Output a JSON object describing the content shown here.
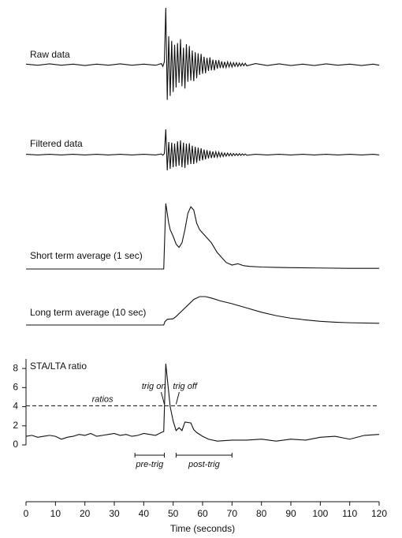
{
  "chart_data": [
    {
      "type": "line",
      "title": "Raw data",
      "xlim": [
        0,
        120
      ],
      "ylim": [
        -10,
        10
      ],
      "x": [
        0,
        4,
        8,
        12,
        16,
        20,
        24,
        28,
        32,
        36,
        40,
        44,
        46,
        46.5,
        47,
        47.5,
        48,
        48.5,
        49,
        49.5,
        50,
        50.5,
        51,
        51.5,
        52,
        52.5,
        53,
        53.5,
        54,
        54.5,
        55,
        55.5,
        56,
        56.5,
        57,
        57.5,
        58,
        58.5,
        59,
        59.5,
        60,
        60.5,
        61,
        61.5,
        62,
        62.5,
        63,
        63.5,
        64,
        64.5,
        65,
        65.5,
        66,
        66.5,
        67,
        67.5,
        68,
        68.5,
        69,
        69.5,
        70,
        70.5,
        71,
        71.5,
        72,
        72.5,
        73,
        73.5,
        74,
        74.5,
        75,
        78,
        82,
        86,
        90,
        94,
        98,
        102,
        106,
        110,
        114,
        118,
        120
      ],
      "values": [
        0.1,
        -0.1,
        0.15,
        -0.1,
        0.1,
        -0.15,
        0.1,
        -0.1,
        0.15,
        -0.1,
        0.1,
        -0.1,
        0.2,
        -0.3,
        0.5,
        10,
        -6.2,
        5,
        -5.5,
        4.2,
        -4.8,
        3.5,
        -4,
        3.8,
        -3.2,
        4.5,
        -3.8,
        3,
        -4.2,
        3.6,
        -3,
        3.3,
        -2.8,
        2.5,
        -2.9,
        2.2,
        -2.4,
        2,
        -1.8,
        1.9,
        -1.6,
        1.4,
        -1.5,
        1.2,
        -1.1,
        1.3,
        -1,
        0.9,
        -1,
        0.8,
        -0.7,
        0.8,
        -0.6,
        0.6,
        -0.6,
        0.5,
        -0.5,
        0.5,
        -0.4,
        0.4,
        -0.4,
        0.35,
        -0.3,
        0.35,
        -0.3,
        0.3,
        -0.25,
        0.25,
        -0.2,
        0.25,
        -0.2,
        0.2,
        -0.15,
        0.15,
        -0.15,
        0.1,
        -0.15,
        0.15,
        -0.1,
        0.1,
        -0.15,
        0.1,
        -0.1
      ]
    },
    {
      "type": "line",
      "title": "Filtered data",
      "xlim": [
        0,
        120
      ],
      "ylim": [
        -10,
        10
      ],
      "x": [
        0,
        4,
        8,
        12,
        16,
        20,
        24,
        28,
        32,
        36,
        40,
        44,
        46,
        46.5,
        47,
        47.5,
        48,
        48.5,
        49,
        49.5,
        50,
        50.5,
        51,
        51.5,
        52,
        52.5,
        53,
        53.5,
        54,
        54.5,
        55,
        55.5,
        56,
        56.5,
        57,
        57.5,
        58,
        58.5,
        59,
        59.5,
        60,
        60.5,
        61,
        61.5,
        62,
        62.5,
        63,
        63.5,
        64,
        64.5,
        65,
        65.5,
        66,
        66.5,
        67,
        67.5,
        68,
        68.5,
        69,
        69.5,
        70,
        70.5,
        71,
        71.5,
        72,
        72.5,
        73,
        73.5,
        74,
        74.5,
        75,
        78,
        82,
        86,
        90,
        94,
        98,
        102,
        106,
        110,
        114,
        118,
        120
      ],
      "values": [
        0.1,
        -0.1,
        0.1,
        -0.1,
        0.1,
        -0.1,
        0.1,
        -0.1,
        0.1,
        -0.1,
        0.1,
        -0.1,
        0.2,
        -0.2,
        0.3,
        8,
        -5,
        4,
        -4.5,
        3.8,
        -4,
        3.5,
        -3.8,
        4.2,
        -3.5,
        4.5,
        -4,
        3.8,
        -4.2,
        3.5,
        -3.2,
        3.6,
        -3,
        2.8,
        -3,
        2.5,
        -2.6,
        2.2,
        -2,
        2,
        -1.8,
        1.6,
        -1.5,
        1.4,
        -1.2,
        1.2,
        -1.1,
        1,
        -1,
        0.9,
        -0.8,
        0.8,
        -0.7,
        0.6,
        -0.6,
        0.5,
        -0.5,
        0.5,
        -0.4,
        0.4,
        -0.4,
        0.35,
        -0.3,
        0.3,
        -0.3,
        0.3,
        -0.25,
        0.25,
        -0.2,
        0.2,
        -0.2,
        0.1,
        -0.1,
        0.1,
        -0.1,
        0.1,
        -0.1,
        0.1,
        -0.1,
        0.1,
        -0.1,
        0.1,
        -0.1
      ]
    },
    {
      "type": "line",
      "title": "Short term average (1 sec)",
      "xlim": [
        0,
        120
      ],
      "ylim": [
        0,
        10
      ],
      "x": [
        0,
        10,
        20,
        30,
        40,
        46.8,
        47.5,
        48.5,
        49,
        50,
        51,
        52,
        53,
        54,
        55,
        56,
        57,
        58,
        59,
        60,
        62,
        63,
        65,
        66,
        68,
        70,
        72,
        74,
        76,
        80,
        85,
        90,
        100,
        110,
        120
      ],
      "values": [
        0,
        0,
        0,
        0,
        0,
        0,
        10,
        7,
        6,
        5,
        3.8,
        3.3,
        4,
        6,
        8.5,
        9.5,
        9,
        7,
        6,
        5.5,
        4.5,
        4,
        2.5,
        2,
        1,
        0.6,
        0.8,
        0.5,
        0.4,
        0.3,
        0.25,
        0.2,
        0.15,
        0.1,
        0.1
      ]
    },
    {
      "type": "line",
      "title": "Long term average (10 sec)",
      "xlim": [
        0,
        120
      ],
      "ylim": [
        0,
        10
      ],
      "x": [
        0,
        20,
        46.8,
        47.2,
        48,
        50,
        51,
        53,
        55,
        57,
        59,
        61,
        63,
        66,
        70,
        75,
        80,
        85,
        90,
        95,
        100,
        105,
        110,
        120
      ],
      "values": [
        0,
        0,
        0,
        1.2,
        2,
        2.2,
        3,
        5,
        7,
        9,
        10,
        10,
        9.5,
        8.5,
        7.5,
        6,
        4.5,
        3.3,
        2.4,
        1.8,
        1.3,
        1,
        0.8,
        0.6
      ]
    },
    {
      "type": "line",
      "title": "STA/LTA ratio",
      "xlim": [
        0,
        120
      ],
      "ylim": [
        0,
        9
      ],
      "xticks": [
        0,
        10,
        20,
        30,
        40,
        50,
        60,
        70,
        80,
        90,
        100,
        110,
        120
      ],
      "yticks": [
        0,
        2,
        4,
        6,
        8
      ],
      "xlabel": "Time (seconds)",
      "x": [
        0,
        2,
        4,
        6,
        8,
        10,
        12,
        14,
        16,
        18,
        20,
        22,
        24,
        26,
        28,
        30,
        32,
        34,
        36,
        38,
        40,
        42,
        44,
        46,
        46.8,
        47.5,
        49,
        50,
        51,
        52,
        53,
        54,
        56,
        57,
        58,
        60,
        62,
        65,
        70,
        75,
        80,
        85,
        90,
        95,
        100,
        105,
        110,
        115,
        120
      ],
      "values": [
        0.9,
        1,
        0.8,
        0.9,
        1,
        0.9,
        0.6,
        0.8,
        0.9,
        1.1,
        1,
        1.2,
        0.9,
        1,
        1.1,
        1.2,
        1,
        1.1,
        0.9,
        1,
        1.2,
        1.1,
        1,
        1.3,
        1.4,
        8.5,
        4,
        2.5,
        1.5,
        1.8,
        1.5,
        2.4,
        2.3,
        1.6,
        1.3,
        0.9,
        0.6,
        0.4,
        0.5,
        0.5,
        0.6,
        0.4,
        0.6,
        0.5,
        0.8,
        0.9,
        0.6,
        1,
        1.1
      ],
      "threshold": {
        "value": 4.1,
        "label": "ratios"
      },
      "annotations": [
        {
          "text": "trig on",
          "x": 47
        },
        {
          "text": "trig off",
          "x": 51
        }
      ],
      "windows": [
        {
          "label": "pre-trig",
          "x": [
            37,
            47
          ]
        },
        {
          "label": "post-trig",
          "x": [
            51,
            70
          ]
        }
      ]
    }
  ]
}
